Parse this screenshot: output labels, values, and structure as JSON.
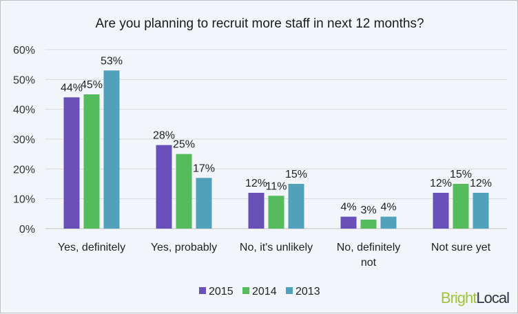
{
  "chart_data": {
    "type": "bar",
    "title": "Are you planning to recruit more staff in next 12 months?",
    "categories": [
      "Yes, definitely",
      "Yes, probably",
      "No, it's unlikely",
      "No, definitely|not",
      "Not sure yet"
    ],
    "series": [
      {
        "name": "2015",
        "color": "#6a50b9",
        "values": [
          44,
          28,
          12,
          4,
          12
        ]
      },
      {
        "name": "2014",
        "color": "#55bb5d",
        "values": [
          45,
          25,
          11,
          3,
          15
        ]
      },
      {
        "name": "2013",
        "color": "#52a1ba",
        "values": [
          53,
          17,
          15,
          4,
          12
        ]
      }
    ],
    "ylim": [
      0,
      60
    ],
    "yticks": [
      "0%",
      "10%",
      "20%",
      "30%",
      "40%",
      "50%",
      "60%"
    ],
    "grid": true,
    "legend": "bottom",
    "value_suffix": "%"
  },
  "logo": {
    "part1": "Bright",
    "part2": "Local",
    "color1": "#9fc43c",
    "color2": "#2b3544"
  }
}
